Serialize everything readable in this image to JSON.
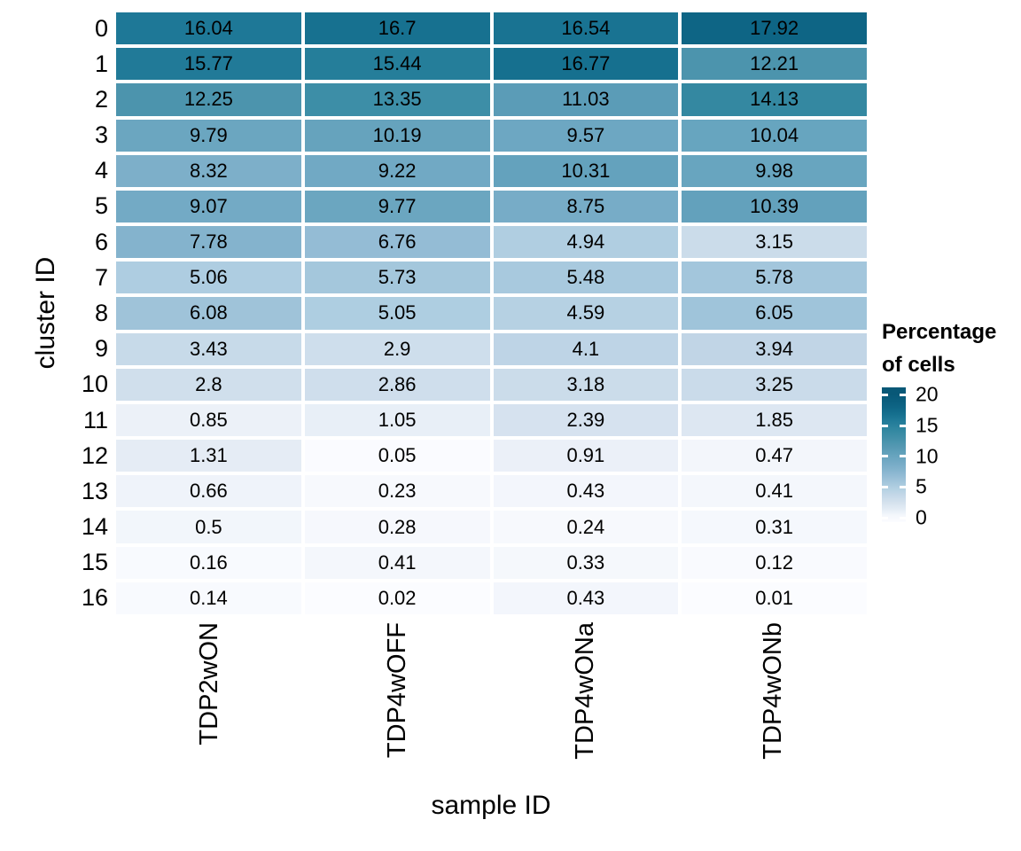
{
  "chart_data": {
    "type": "heatmap",
    "xlabel": "sample ID",
    "ylabel": "cluster ID",
    "categories_x": [
      "TDP2wON",
      "TDP4wOFF",
      "TDP4wONa",
      "TDP4wONb"
    ],
    "categories_y": [
      "0",
      "1",
      "2",
      "3",
      "4",
      "5",
      "6",
      "7",
      "8",
      "9",
      "10",
      "11",
      "12",
      "13",
      "14",
      "15",
      "16"
    ],
    "values": [
      [
        16.04,
        16.7,
        16.54,
        17.92
      ],
      [
        15.77,
        15.44,
        16.77,
        12.21
      ],
      [
        12.25,
        13.35,
        11.03,
        14.13
      ],
      [
        9.79,
        10.19,
        9.57,
        10.04
      ],
      [
        8.32,
        9.22,
        10.31,
        9.98
      ],
      [
        9.07,
        9.77,
        8.75,
        10.39
      ],
      [
        7.78,
        6.76,
        4.94,
        3.15
      ],
      [
        5.06,
        5.73,
        5.48,
        5.78
      ],
      [
        6.08,
        5.05,
        4.59,
        6.05
      ],
      [
        3.43,
        2.9,
        4.1,
        3.94
      ],
      [
        2.8,
        2.86,
        3.18,
        3.25
      ],
      [
        0.85,
        1.05,
        2.39,
        1.85
      ],
      [
        1.31,
        0.05,
        0.91,
        0.47
      ],
      [
        0.66,
        0.23,
        0.43,
        0.41
      ],
      [
        0.5,
        0.28,
        0.24,
        0.31
      ],
      [
        0.16,
        0.41,
        0.33,
        0.12
      ],
      [
        0.14,
        0.02,
        0.43,
        0.01
      ]
    ],
    "legend": {
      "title_line1": "Percentage",
      "title_line2": "of cells",
      "ticks": [
        20,
        15,
        10,
        5,
        0
      ],
      "bar_value_top": 21.2,
      "bar_value_bottom": -0.7
    },
    "colormap": {
      "domain": [
        0,
        20
      ],
      "stops": [
        {
          "v": 0,
          "c": "#fbfcff"
        },
        {
          "v": 1,
          "c": "#e9eff7"
        },
        {
          "v": 2,
          "c": "#dbe6f1"
        },
        {
          "v": 3,
          "c": "#cdddeb"
        },
        {
          "v": 4,
          "c": "#c0d5e6"
        },
        {
          "v": 5,
          "c": "#afcee1"
        },
        {
          "v": 6,
          "c": "#a0c4da"
        },
        {
          "v": 7,
          "c": "#90bad3"
        },
        {
          "v": 8,
          "c": "#81b1cb"
        },
        {
          "v": 9,
          "c": "#74aac5"
        },
        {
          "v": 10,
          "c": "#68a5bf"
        },
        {
          "v": 11,
          "c": "#5b9cb7"
        },
        {
          "v": 12,
          "c": "#4f95ae"
        },
        {
          "v": 13,
          "c": "#4290a9"
        },
        {
          "v": 14,
          "c": "#3589a2"
        },
        {
          "v": 15,
          "c": "#2a829d"
        },
        {
          "v": 16,
          "c": "#1e7897"
        },
        {
          "v": 17,
          "c": "#146e8d"
        },
        {
          "v": 18,
          "c": "#0d6484"
        },
        {
          "v": 19,
          "c": "#0a5e7e"
        },
        {
          "v": 20,
          "c": "#085877"
        }
      ]
    }
  }
}
